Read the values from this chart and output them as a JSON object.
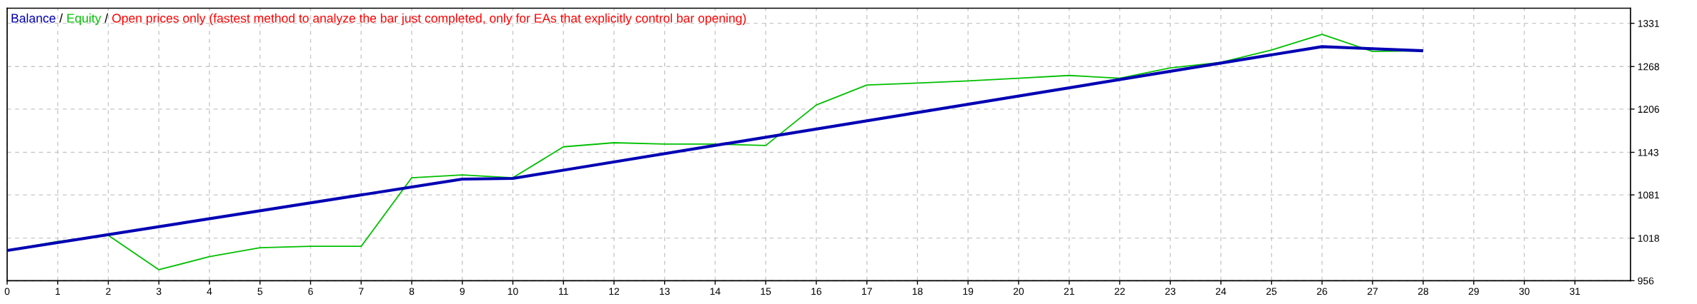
{
  "chart_data": {
    "type": "line",
    "title": "Open prices only (fastest method to analyze the bar just completed, only for EAs that explicitly control bar opening)",
    "annotations": [
      "/",
      "/"
    ],
    "series": [
      {
        "name": "Balance",
        "color": "#0000b4",
        "x": [
          0,
          9,
          10,
          26,
          27,
          28
        ],
        "values": [
          1000,
          1104,
          1105,
          1297,
          1294,
          1291
        ]
      },
      {
        "name": "Equity",
        "color": "#00c000",
        "x": [
          0,
          1,
          2,
          3,
          4,
          5,
          6,
          7,
          8,
          9,
          10,
          11,
          12,
          13,
          14,
          15,
          16,
          17,
          18,
          19,
          20,
          21,
          22,
          23,
          24,
          25,
          26,
          27,
          28
        ],
        "values": [
          1000,
          1013,
          1022,
          972,
          991,
          1004,
          1006,
          1006,
          1106,
          1110,
          1106,
          1151,
          1157,
          1155,
          1155,
          1153,
          1212,
          1241,
          1244,
          1247,
          1251,
          1255,
          1251,
          1266,
          1274,
          1292,
          1315,
          1290,
          1291
        ]
      }
    ],
    "xlim": [
      0,
      32.1
    ],
    "xticks": [
      0,
      1,
      2,
      3,
      4,
      5,
      6,
      7,
      8,
      9,
      10,
      11,
      12,
      13,
      14,
      15,
      16,
      17,
      18,
      19,
      20,
      21,
      22,
      23,
      24,
      25,
      26,
      27,
      28,
      29,
      30,
      31
    ],
    "ylim": [
      956,
      1353
    ],
    "yticks": [
      956,
      1018,
      1081,
      1143,
      1206,
      1268,
      1331
    ],
    "grid": true,
    "legend": "top left",
    "line_style": "solid"
  }
}
